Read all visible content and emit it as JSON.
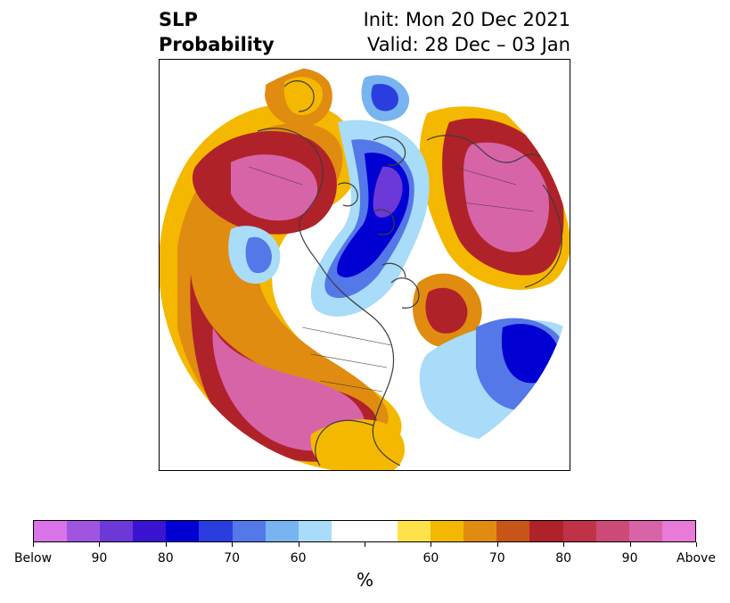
{
  "title": {
    "left_line1": "SLP",
    "left_line2": "Probability",
    "right_line1": "Init: Mon 20 Dec 2021",
    "right_line2": "Valid: 28 Dec – 03 Jan"
  },
  "colorbar": {
    "unit": "%",
    "colors": [
      "#d974e8",
      "#9f55e0",
      "#6c38d8",
      "#3a14d0",
      "#0000d2",
      "#2a3ee0",
      "#5478e8",
      "#78b4f0",
      "#a8dcf8",
      "#ffffff",
      "#ffffff",
      "#ffe24a",
      "#f5b800",
      "#e08c10",
      "#c85418",
      "#b0222a",
      "#c03248",
      "#cc4a78",
      "#d864a8",
      "#e87ad8"
    ],
    "tick_labels": [
      "Below",
      "90",
      "80",
      "70",
      "60",
      "",
      "60",
      "70",
      "80",
      "90",
      "Above"
    ]
  },
  "map": {
    "projection": "north polar stereographic",
    "shading": "probability of above / below normal sea-level pressure",
    "colors": {
      "above_strong": "#d864a8",
      "above_high": "#c03248",
      "above_mid": "#b0222a",
      "above_low": "#e08c10",
      "above_weak": "#f5b800",
      "above_faint": "#ffe24a",
      "below_faint": "#a8dcf8",
      "below_weak": "#78b4f0",
      "below_mid": "#5478e8",
      "below_high": "#2a3ee0",
      "below_strong": "#0000d2",
      "below_extreme": "#6c38d8",
      "coastline": "#3c3c3c"
    }
  }
}
